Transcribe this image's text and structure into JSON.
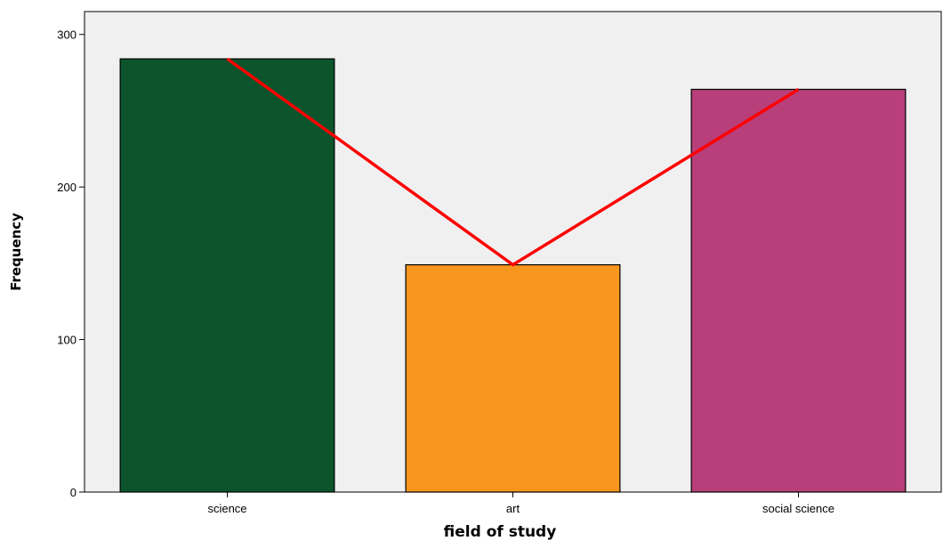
{
  "chart_data": {
    "type": "bar",
    "title": "",
    "xlabel": "field of study",
    "ylabel": "Frequency",
    "categories": [
      "science",
      "art",
      "social science"
    ],
    "values": [
      284,
      149,
      264
    ],
    "bar_colors": [
      "#0c552c",
      "#f7961f",
      "#b83f7a"
    ],
    "bar_edge_color": "#000000",
    "plot_background": "#f0f0f0",
    "line_overlay": {
      "values": [
        284,
        149,
        264
      ],
      "color": "#ff0000"
    },
    "ylim": [
      0,
      315
    ],
    "yticks": [
      0,
      100,
      200,
      300
    ],
    "grid": false,
    "legend": "none"
  }
}
